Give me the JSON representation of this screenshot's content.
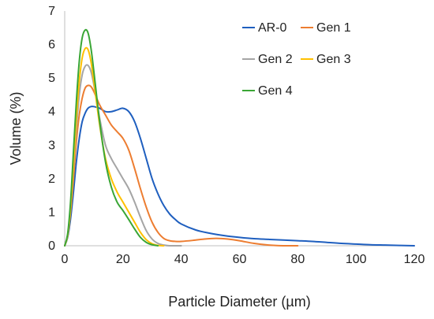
{
  "chart_data": {
    "type": "line",
    "title": "",
    "xlabel": "Particle Diameter (µm)",
    "ylabel": "Volume (%)",
    "xlim": [
      0,
      120
    ],
    "ylim": [
      0,
      7
    ],
    "xticks": [
      0,
      20,
      40,
      60,
      80,
      100,
      120
    ],
    "yticks": [
      0,
      1,
      2,
      3,
      4,
      5,
      6,
      7
    ],
    "grid": false,
    "legend_position": "top-right",
    "series": [
      {
        "name": "AR-0",
        "color": "#1f5fbf",
        "x": [
          0,
          1,
          2,
          3,
          4,
          5,
          6,
          7,
          8,
          9,
          10,
          12,
          14,
          16,
          18,
          20,
          22,
          24,
          26,
          28,
          30,
          32,
          34,
          36,
          38,
          40,
          45,
          50,
          55,
          60,
          65,
          70,
          75,
          80,
          85,
          90,
          95,
          100,
          105,
          110,
          115,
          120
        ],
        "values": [
          0,
          0.25,
          0.8,
          1.6,
          2.5,
          3.2,
          3.7,
          3.95,
          4.1,
          4.15,
          4.15,
          4.1,
          4.0,
          4.0,
          4.05,
          4.1,
          4.0,
          3.7,
          3.2,
          2.6,
          2.0,
          1.55,
          1.2,
          0.95,
          0.78,
          0.65,
          0.47,
          0.37,
          0.3,
          0.25,
          0.21,
          0.19,
          0.17,
          0.15,
          0.13,
          0.1,
          0.07,
          0.05,
          0.03,
          0.02,
          0.01,
          0.0
        ]
      },
      {
        "name": "Gen 1",
        "color": "#ed7d31",
        "x": [
          0,
          1,
          2,
          3,
          4,
          5,
          6,
          7,
          8,
          9,
          10,
          12,
          14,
          16,
          18,
          20,
          22,
          24,
          26,
          28,
          30,
          32,
          34,
          36,
          38,
          40,
          44,
          48,
          52,
          56,
          60,
          65,
          70,
          75,
          80
        ],
        "values": [
          0,
          0.3,
          1.0,
          2.0,
          3.1,
          3.9,
          4.4,
          4.7,
          4.78,
          4.75,
          4.6,
          4.2,
          3.9,
          3.6,
          3.4,
          3.2,
          2.85,
          2.3,
          1.7,
          1.15,
          0.7,
          0.4,
          0.22,
          0.15,
          0.13,
          0.13,
          0.16,
          0.2,
          0.22,
          0.2,
          0.15,
          0.07,
          0.02,
          0.0,
          0.0
        ]
      },
      {
        "name": "Gen 2",
        "color": "#a5a5a5",
        "x": [
          0,
          1,
          2,
          3,
          4,
          5,
          6,
          7,
          8,
          9,
          10,
          12,
          14,
          16,
          18,
          20,
          22,
          24,
          26,
          28,
          30,
          32,
          34,
          36,
          40
        ],
        "values": [
          0,
          0.3,
          1.1,
          2.3,
          3.5,
          4.5,
          5.1,
          5.35,
          5.38,
          5.2,
          4.8,
          3.8,
          3.0,
          2.6,
          2.3,
          2.0,
          1.7,
          1.3,
          0.85,
          0.45,
          0.2,
          0.07,
          0.02,
          0.0,
          0.0
        ]
      },
      {
        "name": "Gen 3",
        "color": "#ffc000",
        "x": [
          0,
          1,
          2,
          3,
          4,
          5,
          6,
          7,
          8,
          9,
          10,
          12,
          14,
          16,
          18,
          20,
          22,
          24,
          26,
          28,
          30,
          32,
          34
        ],
        "values": [
          0,
          0.3,
          1.1,
          2.4,
          3.8,
          4.9,
          5.6,
          5.88,
          5.85,
          5.5,
          4.9,
          3.6,
          2.6,
          2.0,
          1.6,
          1.3,
          1.0,
          0.7,
          0.4,
          0.18,
          0.06,
          0.01,
          0.0
        ]
      },
      {
        "name": "Gen 4",
        "color": "#3aa635",
        "x": [
          0,
          1,
          2,
          3,
          4,
          5,
          6,
          7,
          8,
          9,
          10,
          12,
          14,
          16,
          18,
          20,
          22,
          24,
          26,
          28,
          30,
          32
        ],
        "values": [
          0,
          0.35,
          1.3,
          2.8,
          4.3,
          5.5,
          6.2,
          6.43,
          6.35,
          5.9,
          5.2,
          3.7,
          2.5,
          1.75,
          1.3,
          1.05,
          0.78,
          0.5,
          0.25,
          0.1,
          0.03,
          0.0
        ]
      }
    ]
  }
}
